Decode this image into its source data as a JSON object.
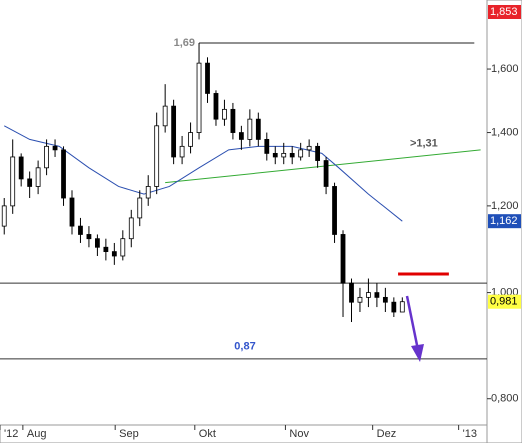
{
  "chart_data": {
    "type": "candlestick",
    "log_scale": true,
    "xlim": [
      0,
      115
    ],
    "ylim": [
      0.757,
      1.85
    ],
    "xticks": [
      {
        "value": 0,
        "label": "'12"
      },
      {
        "value": 5.4,
        "label": "Aug"
      },
      {
        "value": 27.2,
        "label": "Sep"
      },
      {
        "value": 46,
        "label": "Okt"
      },
      {
        "value": 67.4,
        "label": "Nov"
      },
      {
        "value": 88,
        "label": "Dez"
      },
      {
        "value": 108.3,
        "label": "'13"
      }
    ],
    "yticks": [
      {
        "value": 0.8,
        "label": "0,800"
      },
      {
        "value": 1.0,
        "label": "1,000"
      },
      {
        "value": 1.2,
        "label": "1,200"
      },
      {
        "value": 1.4,
        "label": "1,400"
      },
      {
        "value": 1.6,
        "label": "1,600"
      }
    ],
    "x": [
      1,
      3,
      5,
      7,
      9,
      11,
      13,
      15,
      17,
      19,
      21,
      23,
      25,
      27,
      29,
      31,
      33,
      35,
      37,
      39,
      41,
      43,
      45,
      47,
      49,
      51,
      53,
      55,
      57,
      59,
      61,
      63,
      65,
      67,
      69,
      71,
      73,
      75,
      77,
      79,
      81,
      83,
      85,
      87,
      89,
      91,
      93,
      95
    ],
    "open": [
      1.15,
      1.2,
      1.33,
      1.27,
      1.25,
      1.3,
      1.36,
      1.35,
      1.22,
      1.15,
      1.13,
      1.12,
      1.1,
      1.09,
      1.08,
      1.12,
      1.17,
      1.22,
      1.25,
      1.42,
      1.48,
      1.33,
      1.36,
      1.4,
      1.62,
      1.52,
      1.44,
      1.47,
      1.4,
      1.38,
      1.44,
      1.38,
      1.34,
      1.33,
      1.34,
      1.33,
      1.35,
      1.36,
      1.32,
      1.25,
      1.13,
      1.02,
      0.98,
      0.99,
      1.0,
      0.99,
      0.98,
      0.96
    ],
    "high": [
      1.22,
      1.38,
      1.34,
      1.29,
      1.32,
      1.38,
      1.38,
      1.36,
      1.24,
      1.17,
      1.15,
      1.13,
      1.12,
      1.11,
      1.14,
      1.19,
      1.24,
      1.28,
      1.46,
      1.55,
      1.5,
      1.39,
      1.43,
      1.69,
      1.64,
      1.53,
      1.5,
      1.49,
      1.42,
      1.47,
      1.46,
      1.4,
      1.36,
      1.37,
      1.36,
      1.37,
      1.38,
      1.37,
      1.33,
      1.26,
      1.14,
      1.03,
      1.01,
      1.03,
      1.02,
      1.01,
      0.99,
      0.99
    ],
    "low": [
      1.13,
      1.18,
      1.25,
      1.22,
      1.23,
      1.28,
      1.33,
      1.2,
      1.13,
      1.11,
      1.1,
      1.08,
      1.07,
      1.06,
      1.07,
      1.1,
      1.15,
      1.2,
      1.23,
      1.4,
      1.31,
      1.31,
      1.34,
      1.38,
      1.49,
      1.42,
      1.42,
      1.38,
      1.35,
      1.36,
      1.36,
      1.32,
      1.31,
      1.31,
      1.31,
      1.32,
      1.33,
      1.3,
      1.23,
      1.11,
      0.95,
      0.94,
      0.96,
      0.97,
      0.97,
      0.96,
      0.95,
      0.96
    ],
    "close": [
      1.2,
      1.33,
      1.27,
      1.25,
      1.3,
      1.36,
      1.35,
      1.22,
      1.15,
      1.13,
      1.12,
      1.1,
      1.09,
      1.08,
      1.12,
      1.17,
      1.22,
      1.25,
      1.42,
      1.48,
      1.33,
      1.36,
      1.4,
      1.62,
      1.52,
      1.44,
      1.47,
      1.4,
      1.38,
      1.44,
      1.38,
      1.34,
      1.33,
      1.34,
      1.33,
      1.35,
      1.36,
      1.32,
      1.25,
      1.13,
      1.02,
      0.98,
      0.99,
      1.0,
      0.99,
      0.98,
      0.96,
      0.981
    ],
    "moving_average": {
      "color": "#2b4fb0",
      "x": [
        1,
        7,
        14,
        21,
        28,
        34,
        40,
        47,
        54,
        61,
        69,
        76,
        80,
        87,
        95
      ],
      "values": [
        1.42,
        1.38,
        1.36,
        1.3,
        1.25,
        1.23,
        1.25,
        1.3,
        1.35,
        1.36,
        1.36,
        1.34,
        1.3,
        1.23,
        1.162
      ]
    },
    "lines": [
      {
        "x": [
          47,
          112
        ],
        "values": [
          1.69,
          1.69
        ],
        "color": "#222222",
        "label": "1,69",
        "label_color": "#888888"
      },
      {
        "x": [
          39,
          113.5
        ],
        "values": [
          1.26,
          1.35
        ],
        "color": "#33aa33",
        "label": ">1,31",
        "label_color": "#555555"
      },
      {
        "x": [
          0,
          115
        ],
        "values": [
          1.02,
          1.02
        ],
        "color": "#333333"
      },
      {
        "x": [
          94,
          106
        ],
        "values": [
          1.04,
          1.04
        ],
        "color": "#e00000"
      },
      {
        "x": [
          0,
          115
        ],
        "values": [
          0.87,
          0.87
        ],
        "color": "#333333",
        "label": "0,87",
        "label_color": "#3355cc"
      }
    ],
    "badges": [
      {
        "value": 1.853,
        "label": "1,853",
        "color": "#e8232a",
        "text_color": "#ffffff"
      },
      {
        "value": 1.162,
        "label": "1,162",
        "color": "#1f4fb8",
        "text_color": "#ffffff"
      },
      {
        "value": 0.981,
        "label": "0,981",
        "color": "#ffff44",
        "text_color": "#000000"
      }
    ]
  }
}
